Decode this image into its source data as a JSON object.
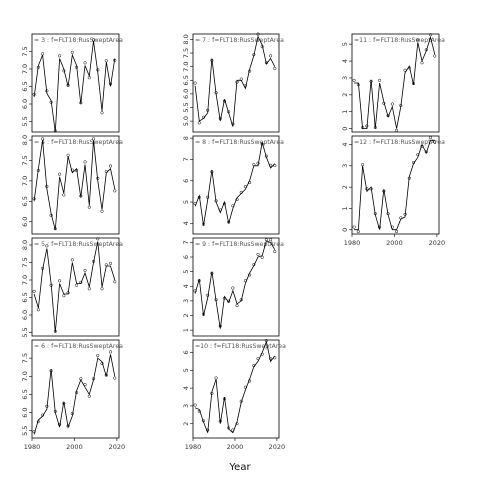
{
  "figure": {
    "xlabel": "Year"
  },
  "chart_data": [
    {
      "type": "line",
      "title": "= 3 : f=FLT18:RusSweptArea",
      "x": [
        1981,
        1983,
        1985,
        1987,
        1989,
        1991,
        1993,
        1995,
        1997,
        1999,
        2001,
        2003,
        2005,
        2007,
        2009,
        2011,
        2013,
        2015,
        2017,
        2019
      ],
      "values": [
        6.2,
        7.1,
        7.4,
        6.3,
        6.1,
        5.2,
        7.3,
        7.0,
        6.5,
        7.4,
        7.1,
        6.0,
        7.1,
        6.8,
        7.8,
        6.9,
        5.8,
        7.2,
        6.5,
        7.3
      ],
      "ylim": [
        5.2,
        8.0
      ],
      "yticks": [
        5.5,
        6.0,
        6.5,
        7.0,
        7.5
      ],
      "xlim": [
        1980,
        2021
      ],
      "xticks": []
    },
    {
      "type": "line",
      "title": "= 4 : f=FLT18:RusSweptArea",
      "x": [
        1981,
        1983,
        1985,
        1987,
        1989,
        1991,
        1993,
        1995,
        1997,
        1999,
        2001,
        2003,
        2005,
        2007,
        2009,
        2011,
        2013,
        2015,
        2017,
        2019
      ],
      "values": [
        6.5,
        7.3,
        8.0,
        6.8,
        6.2,
        5.8,
        7.1,
        6.7,
        7.6,
        7.2,
        7.3,
        6.6,
        7.4,
        6.4,
        8.0,
        7.0,
        6.3,
        7.2,
        7.3,
        6.8
      ],
      "ylim": [
        5.7,
        8.1
      ],
      "yticks": [
        6.0,
        6.5,
        7.0,
        7.5,
        8.0
      ],
      "xlim": [
        1980,
        2021
      ],
      "xticks": []
    },
    {
      "type": "line",
      "title": "= 5 : f=FLT18:RusSweptArea",
      "x": [
        1981,
        1983,
        1985,
        1987,
        1989,
        1991,
        1993,
        1995,
        1997,
        1999,
        2001,
        2003,
        2005,
        2007,
        2009,
        2011,
        2013,
        2015,
        2017,
        2019
      ],
      "values": [
        6.6,
        6.2,
        7.3,
        7.9,
        6.9,
        5.5,
        6.9,
        6.6,
        6.6,
        7.5,
        6.9,
        6.9,
        7.2,
        6.8,
        7.5,
        8.1,
        6.8,
        7.4,
        7.4,
        7.0
      ],
      "ylim": [
        5.4,
        8.2
      ],
      "yticks": [
        5.5,
        6.0,
        6.5,
        7.0,
        7.5,
        8.0
      ],
      "xlim": [
        1980,
        2021
      ],
      "xticks": []
    },
    {
      "type": "line",
      "title": "= 6 : f=FLT18:RusSweptArea",
      "x": [
        1981,
        1983,
        1985,
        1987,
        1989,
        1991,
        1993,
        1995,
        1997,
        1999,
        2001,
        2003,
        2005,
        2007,
        2009,
        2011,
        2013,
        2015,
        2017,
        2019
      ],
      "values": [
        5.4,
        5.8,
        5.9,
        6.1,
        7.2,
        6.0,
        5.6,
        6.3,
        5.6,
        5.9,
        6.6,
        6.9,
        6.7,
        6.5,
        6.9,
        7.5,
        7.4,
        7.0,
        7.6,
        7.0
      ],
      "ylim": [
        5.3,
        8.0
      ],
      "yticks": [
        5.5,
        6.0,
        6.5,
        7.0,
        7.5
      ],
      "xlim": [
        1980,
        2021
      ],
      "xticks": [
        1980,
        2000,
        2020
      ]
    },
    {
      "type": "line",
      "title": "= 7 : f=FLT18:RusSweptArea",
      "x": [
        1981,
        1983,
        1985,
        1987,
        1989,
        1991,
        1993,
        1995,
        1997,
        1999,
        2001,
        2003,
        2005,
        2007,
        2009,
        2011,
        2013,
        2015,
        2017,
        2019
      ],
      "values": [
        6.3,
        5.0,
        5.1,
        5.3,
        7.3,
        6.0,
        5.0,
        5.8,
        5.3,
        4.8,
        6.5,
        6.5,
        6.2,
        6.9,
        7.4,
        8.1,
        7.8,
        7.1,
        7.3,
        7.0
      ],
      "ylim": [
        4.6,
        8.2
      ],
      "yticks": [
        5.0,
        5.5,
        6.0,
        6.5,
        7.0,
        7.5,
        8.0
      ],
      "xlim": [
        1980,
        2021
      ],
      "xticks": []
    },
    {
      "type": "line",
      "title": "= 8 : f=FLT18:RusSweptArea",
      "x": [
        1981,
        1983,
        1985,
        1987,
        1989,
        1991,
        1993,
        1995,
        1997,
        1999,
        2001,
        2003,
        2005,
        2007,
        2009,
        2011,
        2013,
        2015,
        2017,
        2019
      ],
      "values": [
        4.8,
        5.3,
        3.9,
        5.1,
        6.5,
        5.0,
        4.5,
        5.0,
        4.0,
        4.7,
        5.2,
        5.4,
        5.6,
        6.0,
        6.7,
        6.7,
        7.8,
        7.1,
        6.6,
        6.8
      ],
      "ylim": [
        3.5,
        8.1
      ],
      "yticks": [
        4,
        5,
        6,
        7,
        8
      ],
      "xlim": [
        1980,
        2021
      ],
      "xticks": []
    },
    {
      "type": "line",
      "title": "= 9 : f=FLT18:RusSweptArea",
      "x": [
        1981,
        1983,
        1985,
        1987,
        1989,
        1991,
        1993,
        1995,
        1997,
        1999,
        2001,
        2003,
        2005,
        2007,
        2009,
        2011,
        2013,
        2015,
        2017,
        2019
      ],
      "values": [
        3.5,
        4.5,
        2.0,
        3.2,
        5.0,
        3.0,
        1.1,
        3.3,
        2.9,
        3.7,
        2.8,
        3.0,
        4.2,
        4.9,
        5.4,
        6.0,
        6.1,
        7.1,
        7.0,
        6.5
      ],
      "ylim": [
        0.6,
        7.3
      ],
      "yticks": [
        1,
        2,
        3,
        4,
        5,
        6,
        7
      ],
      "xlim": [
        1980,
        2021
      ],
      "xticks": []
    },
    {
      "type": "line",
      "title": "=10 : f=FLT18:RusSweptArea",
      "x": [
        1981,
        1983,
        1985,
        1987,
        1989,
        1991,
        1993,
        1995,
        1997,
        1999,
        2001,
        2003,
        2005,
        2007,
        2009,
        2011,
        2013,
        2015,
        2017,
        2019
      ],
      "values": [
        2.9,
        2.8,
        2.1,
        1.5,
        3.8,
        4.5,
        2.0,
        3.5,
        1.7,
        1.5,
        2.1,
        3.2,
        3.9,
        4.5,
        5.2,
        5.5,
        6.0,
        6.6,
        5.5,
        5.8
      ],
      "ylim": [
        1.2,
        6.7
      ],
      "yticks": [
        2,
        3,
        4,
        5,
        6
      ],
      "xlim": [
        1980,
        2021
      ],
      "xticks": [
        1980,
        2000,
        2020
      ]
    },
    {
      "type": "line",
      "title": "=11 : f=FLT18:RusSweptArea",
      "x": [
        1981,
        1983,
        1985,
        1987,
        1989,
        1991,
        1993,
        1995,
        1997,
        1999,
        2001,
        2003,
        2005,
        2007,
        2009,
        2011,
        2013,
        2015,
        2017,
        2019
      ],
      "values": [
        2.7,
        2.7,
        0.0,
        0.0,
        2.9,
        0.0,
        2.7,
        1.6,
        0.7,
        1.3,
        0.0,
        1.3,
        3.3,
        3.7,
        2.6,
        5.1,
        4.0,
        4.6,
        5.4,
        4.4
      ],
      "ylim": [
        -0.2,
        5.6
      ],
      "yticks": [
        0,
        1,
        2,
        3,
        4,
        5
      ],
      "xlim": [
        1980,
        2021
      ],
      "xticks": []
    },
    {
      "type": "line",
      "title": "=12 : f=FLT18:RusSweptArea",
      "x": [
        1981,
        1983,
        1985,
        1987,
        1989,
        1991,
        1993,
        1995,
        1997,
        1999,
        2001,
        2003,
        2005,
        2007,
        2009,
        2011,
        2013,
        2015,
        2017,
        2019
      ],
      "values": [
        0.0,
        0.0,
        3.0,
        1.8,
        2.0,
        0.7,
        0.0,
        1.9,
        0.7,
        0.0,
        0.0,
        0.5,
        0.6,
        2.5,
        3.1,
        3.4,
        4.0,
        3.6,
        4.2,
        4.2
      ],
      "ylim": [
        -0.2,
        4.4
      ],
      "yticks": [
        0,
        1,
        2,
        3,
        4
      ],
      "xlim": [
        1980,
        2021
      ],
      "xticks": [
        1980,
        2000,
        2020
      ]
    }
  ]
}
